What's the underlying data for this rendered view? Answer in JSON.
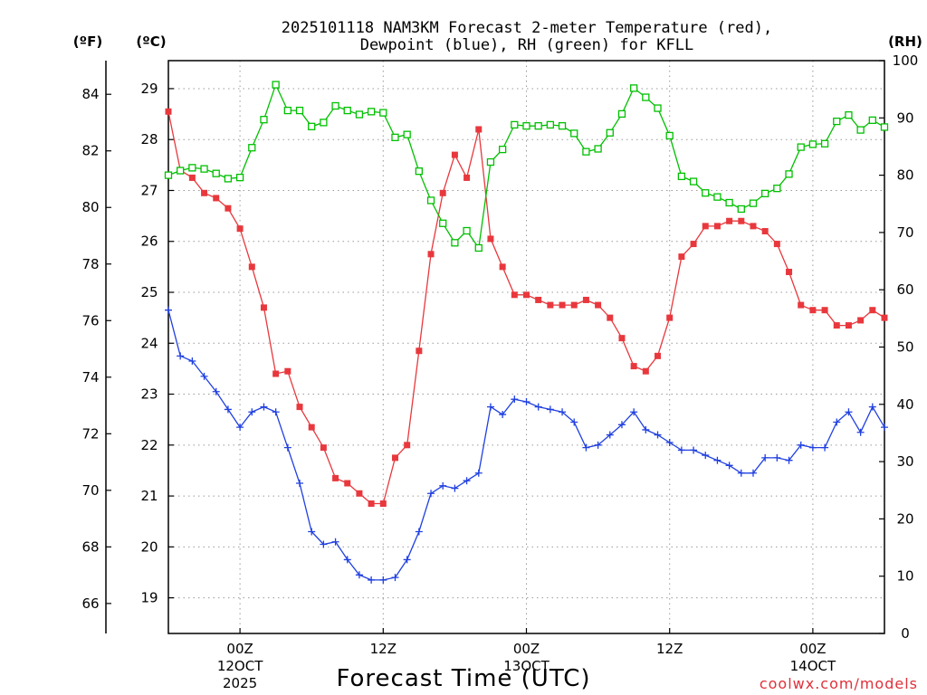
{
  "chart_data": {
    "type": "line",
    "title_line1": "2025101118 NAM3KM Forecast 2-meter Temperature (red),",
    "title_line2": "Dewpoint (blue), RH (green) for KFLL",
    "xlabel": "Forecast Time (UTC)",
    "credit": "coolwx.com/models",
    "unit_f": "(ºF)",
    "unit_c": "(ºC)",
    "unit_rh": "(RH)",
    "hours_from_start": [
      0,
      60
    ],
    "x_ticks": [
      {
        "hour": 6,
        "l1": "00Z",
        "l2": "12OCT",
        "l3": "2025"
      },
      {
        "hour": 18,
        "l1": "12Z",
        "l2": "",
        "l3": ""
      },
      {
        "hour": 30,
        "l1": "00Z",
        "l2": "13OCT",
        "l3": ""
      },
      {
        "hour": 42,
        "l1": "12Z",
        "l2": "",
        "l3": ""
      },
      {
        "hour": 54,
        "l1": "00Z",
        "l2": "14OCT",
        "l3": ""
      }
    ],
    "c_range": [
      18.3,
      29.55
    ],
    "c_ticks": [
      "19",
      "20",
      "21",
      "22",
      "23",
      "24",
      "25",
      "26",
      "27",
      "28",
      "29"
    ],
    "f_ticks": [
      "66",
      "68",
      "70",
      "72",
      "74",
      "76",
      "78",
      "80",
      "82",
      "84"
    ],
    "rh_range": [
      0,
      100
    ],
    "rh_ticks": [
      "0",
      "10",
      "20",
      "30",
      "40",
      "50",
      "60",
      "70",
      "80",
      "90",
      "100"
    ],
    "series": [
      {
        "name": "Temperature",
        "unit": "C",
        "color": "#e8383d",
        "marker": "filled-square",
        "values": [
          28.55,
          27.4,
          27.25,
          26.95,
          26.85,
          26.65,
          26.25,
          25.5,
          24.7,
          23.4,
          23.45,
          22.75,
          22.35,
          21.95,
          21.35,
          21.25,
          21.05,
          20.85,
          20.85,
          21.75,
          22.0,
          23.85,
          25.75,
          26.95,
          27.7,
          27.25,
          28.2,
          26.05,
          25.5,
          24.95,
          24.95,
          24.85,
          24.75,
          24.75,
          24.75,
          24.85,
          24.75,
          24.5,
          24.1,
          23.55,
          23.45,
          23.75,
          24.5,
          25.7,
          25.95,
          26.3,
          26.3,
          26.4,
          26.4,
          26.3,
          26.2,
          25.95,
          25.4,
          24.75,
          24.65,
          24.65,
          24.35,
          24.35,
          24.45,
          24.65,
          24.5
        ]
      },
      {
        "name": "Dewpoint",
        "unit": "C",
        "color": "#2040e0",
        "marker": "plus",
        "values": [
          24.65,
          23.75,
          23.65,
          23.35,
          23.05,
          22.7,
          22.35,
          22.65,
          22.75,
          22.65,
          21.95,
          21.25,
          20.3,
          20.05,
          20.1,
          19.75,
          19.45,
          19.35,
          19.35,
          19.4,
          19.75,
          20.3,
          21.05,
          21.2,
          21.15,
          21.3,
          21.45,
          22.75,
          22.6,
          22.9,
          22.85,
          22.75,
          22.7,
          22.65,
          22.45,
          21.95,
          22.0,
          22.2,
          22.4,
          22.65,
          22.3,
          22.2,
          22.05,
          21.9,
          21.9,
          21.8,
          21.7,
          21.6,
          21.45,
          21.45,
          21.75,
          21.75,
          21.7,
          22.0,
          21.95,
          21.95,
          22.45,
          22.65,
          22.25,
          22.75,
          22.35
        ]
      },
      {
        "name": "RH",
        "unit": "%",
        "color": "#00c000",
        "marker": "open-square",
        "values": [
          80,
          80.8,
          81.3,
          81.1,
          80.3,
          79.4,
          79.6,
          84.8,
          89.7,
          95.8,
          91.3,
          91.3,
          88.5,
          89.2,
          92.1,
          91.3,
          90.6,
          91.1,
          90.9,
          86.6,
          87.1,
          80.7,
          75.6,
          71.6,
          68.2,
          70.3,
          67.3,
          82.3,
          84.5,
          88.8,
          88.6,
          88.6,
          88.8,
          88.6,
          87.3,
          84.1,
          84.6,
          87.4,
          90.7,
          95.2,
          93.6,
          91.7,
          86.9,
          79.8,
          78.9,
          76.9,
          76.2,
          75.2,
          74.1,
          75.1,
          76.8,
          77.7,
          80.2,
          84.9,
          85.4,
          85.5,
          89.4,
          90.5,
          87.9,
          89.6,
          88.4
        ]
      }
    ]
  }
}
